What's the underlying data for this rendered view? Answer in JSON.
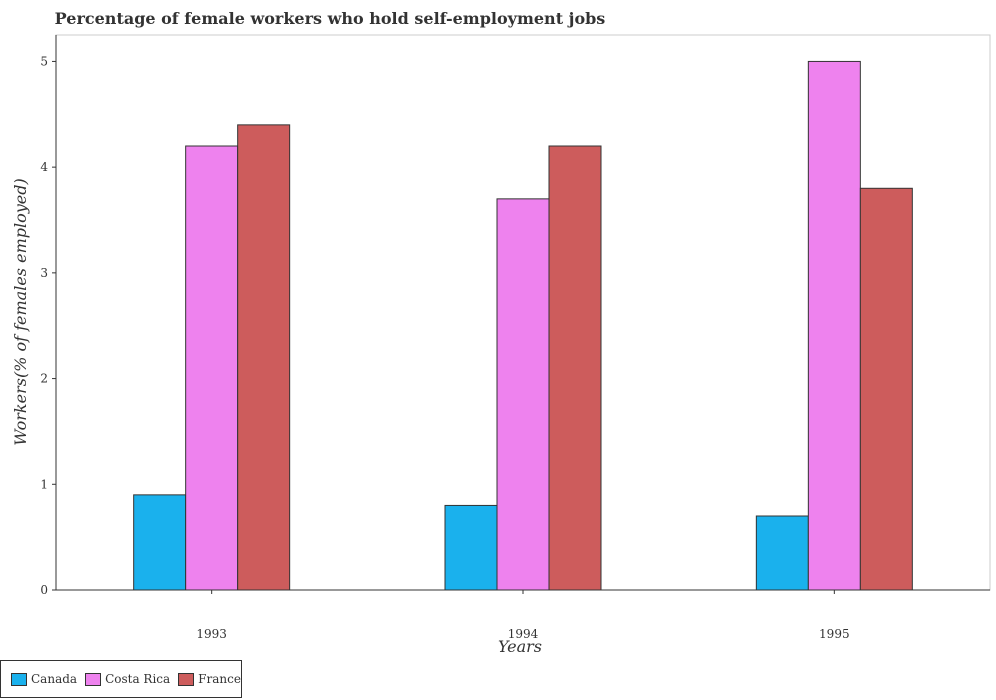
{
  "chart_data": {
    "type": "bar",
    "title": "Percentage of female workers who hold self-employment jobs",
    "xlabel": "Years",
    "ylabel": "Workers(% of females employed)",
    "categories": [
      "1993",
      "1994",
      "1995"
    ],
    "series": [
      {
        "name": "Canada",
        "color": "#1ab1ed",
        "values": [
          0.9,
          0.8,
          0.7
        ]
      },
      {
        "name": "Costa Rica",
        "color": "#ee82ee",
        "values": [
          4.2,
          3.7,
          5.0
        ]
      },
      {
        "name": "France",
        "color": "#cd5c5c",
        "values": [
          4.4,
          4.2,
          3.8
        ]
      }
    ],
    "ylim": [
      0,
      5.25
    ],
    "yticks": [
      0,
      1,
      2,
      3,
      4,
      5
    ],
    "legend_position": "bottom-left",
    "grid": false
  }
}
